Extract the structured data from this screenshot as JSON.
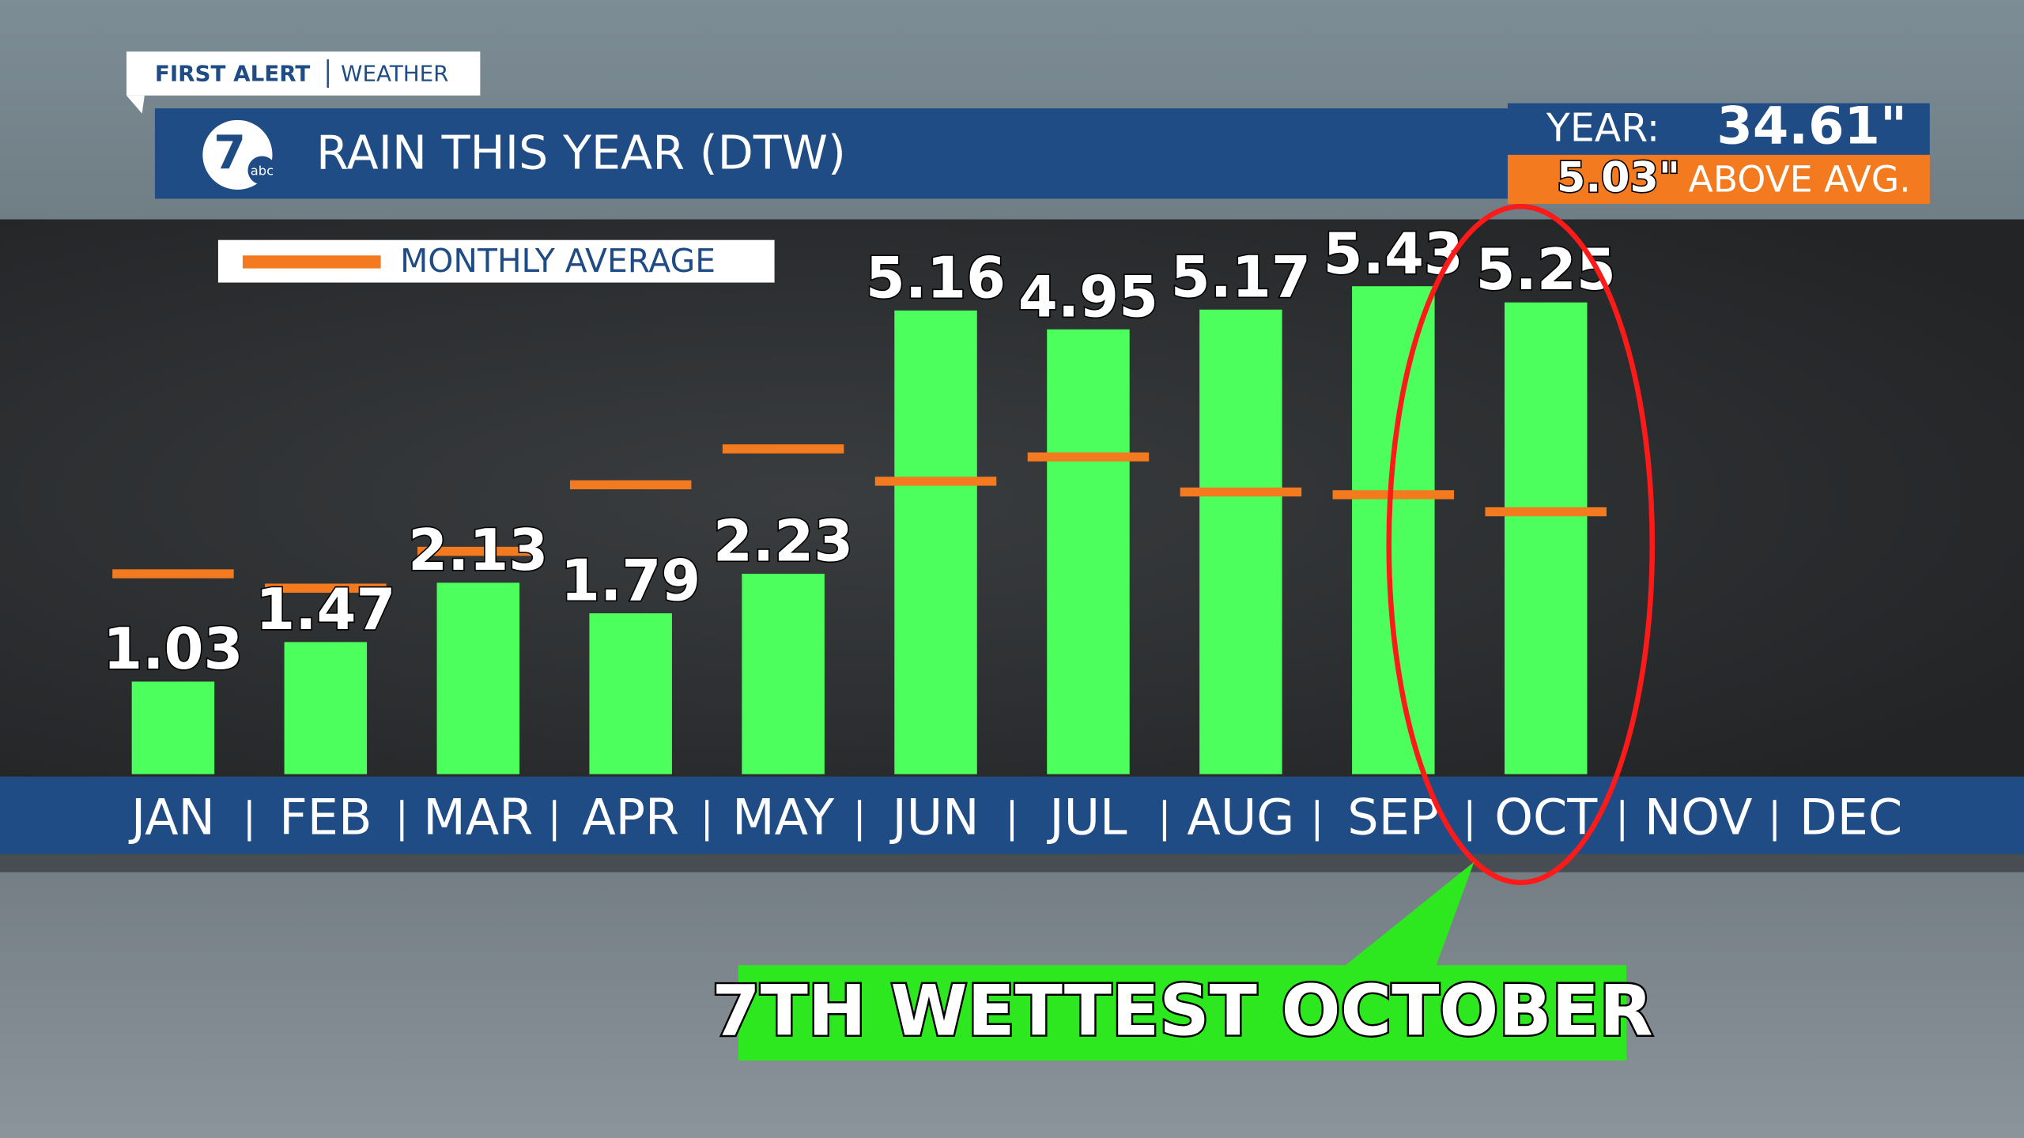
{
  "header": {
    "brand": "FIRST ALERT",
    "brand_sub": "WEATHER",
    "logo": "7",
    "logo_sub": "abc"
  },
  "summary": {
    "year_label": "YEAR:",
    "year_total": "34.61\"",
    "above": "5.03\"",
    "above_label": "ABOVE AVG."
  },
  "annotation": "7TH WETTEST OCTOBER",
  "chart_data": {
    "type": "bar",
    "title": "RAIN THIS YEAR (DTW)",
    "categories": [
      "JAN",
      "FEB",
      "MAR",
      "APR",
      "MAY",
      "JUN",
      "JUL",
      "AUG",
      "SEP",
      "OCT",
      "NOV",
      "DEC"
    ],
    "values": [
      1.03,
      1.47,
      2.13,
      1.79,
      2.23,
      5.16,
      4.95,
      5.17,
      5.43,
      5.25,
      null,
      null
    ],
    "color": "#4cff5c",
    "average": {
      "name": "MONTHLY AVERAGE",
      "color": "#f47a1f",
      "values": [
        2.23,
        2.07,
        2.48,
        3.22,
        3.62,
        3.26,
        3.53,
        3.14,
        3.11,
        2.92,
        null,
        null
      ]
    },
    "ylim": [
      0,
      5.6
    ]
  }
}
